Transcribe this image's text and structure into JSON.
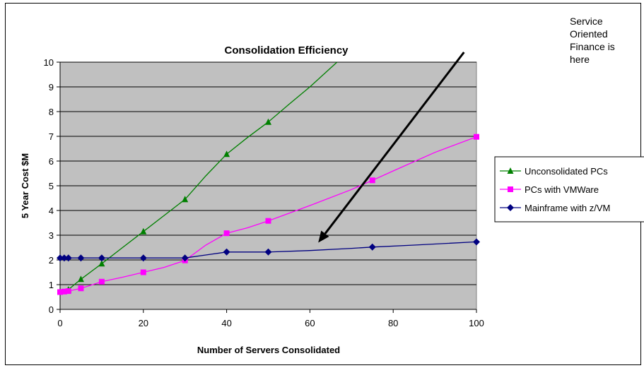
{
  "chart_data": {
    "type": "line",
    "title": "Consolidation Efficiency",
    "xlabel": "Number of Servers Consolidated",
    "ylabel": "5 Year Cost $M",
    "xlim": [
      0,
      100
    ],
    "ylim": [
      0,
      10
    ],
    "xticks": [
      0,
      20,
      40,
      60,
      80,
      100
    ],
    "yticks": [
      0,
      1,
      2,
      3,
      4,
      5,
      6,
      7,
      8,
      9,
      10
    ],
    "grid": "horizontal",
    "plot_background": "#c0c0c0",
    "legend_position": "right",
    "series": [
      {
        "name": "Unconsolidated PCs",
        "color": "#008000",
        "marker": "triangle",
        "markers": [
          {
            "x": 2,
            "y": 0.8
          },
          {
            "x": 5,
            "y": 1.22
          },
          {
            "x": 10,
            "y": 1.85
          },
          {
            "x": 20,
            "y": 3.15
          },
          {
            "x": 30,
            "y": 4.45
          },
          {
            "x": 40,
            "y": 6.28
          },
          {
            "x": 50,
            "y": 7.58
          }
        ],
        "line": [
          {
            "x": 1,
            "y": 0.68
          },
          {
            "x": 2,
            "y": 0.8
          },
          {
            "x": 5,
            "y": 1.22
          },
          {
            "x": 10,
            "y": 1.85
          },
          {
            "x": 15,
            "y": 2.5
          },
          {
            "x": 20,
            "y": 3.15
          },
          {
            "x": 25,
            "y": 3.8
          },
          {
            "x": 30,
            "y": 4.45
          },
          {
            "x": 35,
            "y": 5.4
          },
          {
            "x": 40,
            "y": 6.28
          },
          {
            "x": 45,
            "y": 6.95
          },
          {
            "x": 50,
            "y": 7.58
          },
          {
            "x": 55,
            "y": 8.3
          },
          {
            "x": 60,
            "y": 9.0
          },
          {
            "x": 66.5,
            "y": 10.0
          }
        ]
      },
      {
        "name": "PCs with VMWare",
        "color": "#ff00ff",
        "marker": "square",
        "markers": [
          {
            "x": 0,
            "y": 0.7
          },
          {
            "x": 1,
            "y": 0.72
          },
          {
            "x": 2,
            "y": 0.74
          },
          {
            "x": 5,
            "y": 0.85
          },
          {
            "x": 10,
            "y": 1.12
          },
          {
            "x": 20,
            "y": 1.5
          },
          {
            "x": 30,
            "y": 1.98
          },
          {
            "x": 40,
            "y": 3.08
          },
          {
            "x": 50,
            "y": 3.58
          },
          {
            "x": 75,
            "y": 5.22
          },
          {
            "x": 100,
            "y": 6.98
          }
        ],
        "line": [
          {
            "x": 0,
            "y": 0.7
          },
          {
            "x": 2,
            "y": 0.74
          },
          {
            "x": 5,
            "y": 0.85
          },
          {
            "x": 10,
            "y": 1.12
          },
          {
            "x": 15,
            "y": 1.3
          },
          {
            "x": 20,
            "y": 1.5
          },
          {
            "x": 25,
            "y": 1.7
          },
          {
            "x": 30,
            "y": 1.98
          },
          {
            "x": 35,
            "y": 2.6
          },
          {
            "x": 40,
            "y": 3.08
          },
          {
            "x": 45,
            "y": 3.3
          },
          {
            "x": 50,
            "y": 3.58
          },
          {
            "x": 60,
            "y": 4.2
          },
          {
            "x": 70,
            "y": 4.85
          },
          {
            "x": 75,
            "y": 5.22
          },
          {
            "x": 80,
            "y": 5.6
          },
          {
            "x": 90,
            "y": 6.35
          },
          {
            "x": 100,
            "y": 6.98
          }
        ]
      },
      {
        "name": "Mainframe with z/VM",
        "color": "#000080",
        "marker": "diamond",
        "markers": [
          {
            "x": 0,
            "y": 2.08
          },
          {
            "x": 1,
            "y": 2.08
          },
          {
            "x": 2,
            "y": 2.08
          },
          {
            "x": 5,
            "y": 2.08
          },
          {
            "x": 10,
            "y": 2.08
          },
          {
            "x": 20,
            "y": 2.08
          },
          {
            "x": 30,
            "y": 2.08
          },
          {
            "x": 40,
            "y": 2.32
          },
          {
            "x": 50,
            "y": 2.32
          },
          {
            "x": 75,
            "y": 2.52
          },
          {
            "x": 100,
            "y": 2.73
          }
        ],
        "line": [
          {
            "x": 0,
            "y": 2.08
          },
          {
            "x": 30,
            "y": 2.08
          },
          {
            "x": 35,
            "y": 2.2
          },
          {
            "x": 40,
            "y": 2.32
          },
          {
            "x": 50,
            "y": 2.32
          },
          {
            "x": 60,
            "y": 2.38
          },
          {
            "x": 70,
            "y": 2.47
          },
          {
            "x": 75,
            "y": 2.52
          },
          {
            "x": 85,
            "y": 2.6
          },
          {
            "x": 100,
            "y": 2.73
          }
        ]
      }
    ],
    "annotation": {
      "lines": [
        "Service",
        "Oriented",
        "Finance is",
        "here"
      ],
      "arrow_from": {
        "x": 97,
        "y": 10.4
      },
      "arrow_to": {
        "x": 62,
        "y": 2.7
      }
    }
  }
}
